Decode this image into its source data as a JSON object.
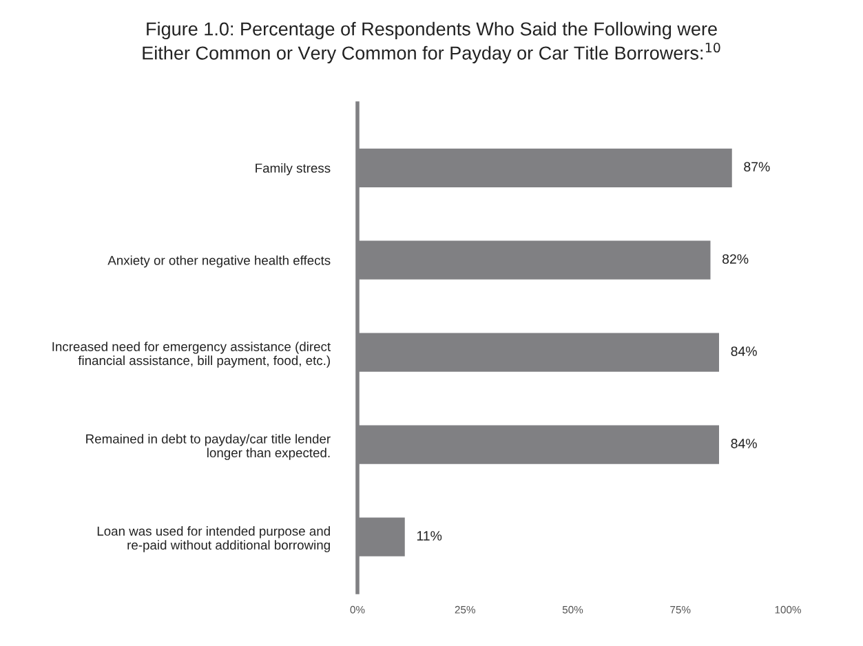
{
  "chart_data": {
    "type": "bar",
    "orientation": "horizontal",
    "title": "Figure 1.0: Percentage of Respondents Who Said the Following were\nEither Common or Very Common for Payday or Car Title Borrowers:$^{10}$",
    "categories": [
      "Family stress",
      "Anxiety or other negative health effects",
      "Increased need for emergency assistance (direct\nfinancial assistance, bill payment, food, etc.)",
      "Remained in debt to payday/car title lender\nlonger than expected.",
      "Loan was used for intended purpose and\nre-paid without additional borrowing"
    ],
    "values": [
      87,
      82,
      84,
      84,
      11
    ],
    "value_labels": [
      "87%",
      "82%",
      "84%",
      "84%",
      "11%"
    ],
    "color": "#808083",
    "xlim": [
      0,
      100
    ],
    "xticks": [
      {
        "value": 0,
        "label": "0%"
      },
      {
        "value": 25,
        "label": "25%"
      },
      {
        "value": 50,
        "label": "50%"
      },
      {
        "value": 75,
        "label": "75%"
      },
      {
        "value": 100,
        "label": "100%"
      }
    ],
    "grid": false
  }
}
